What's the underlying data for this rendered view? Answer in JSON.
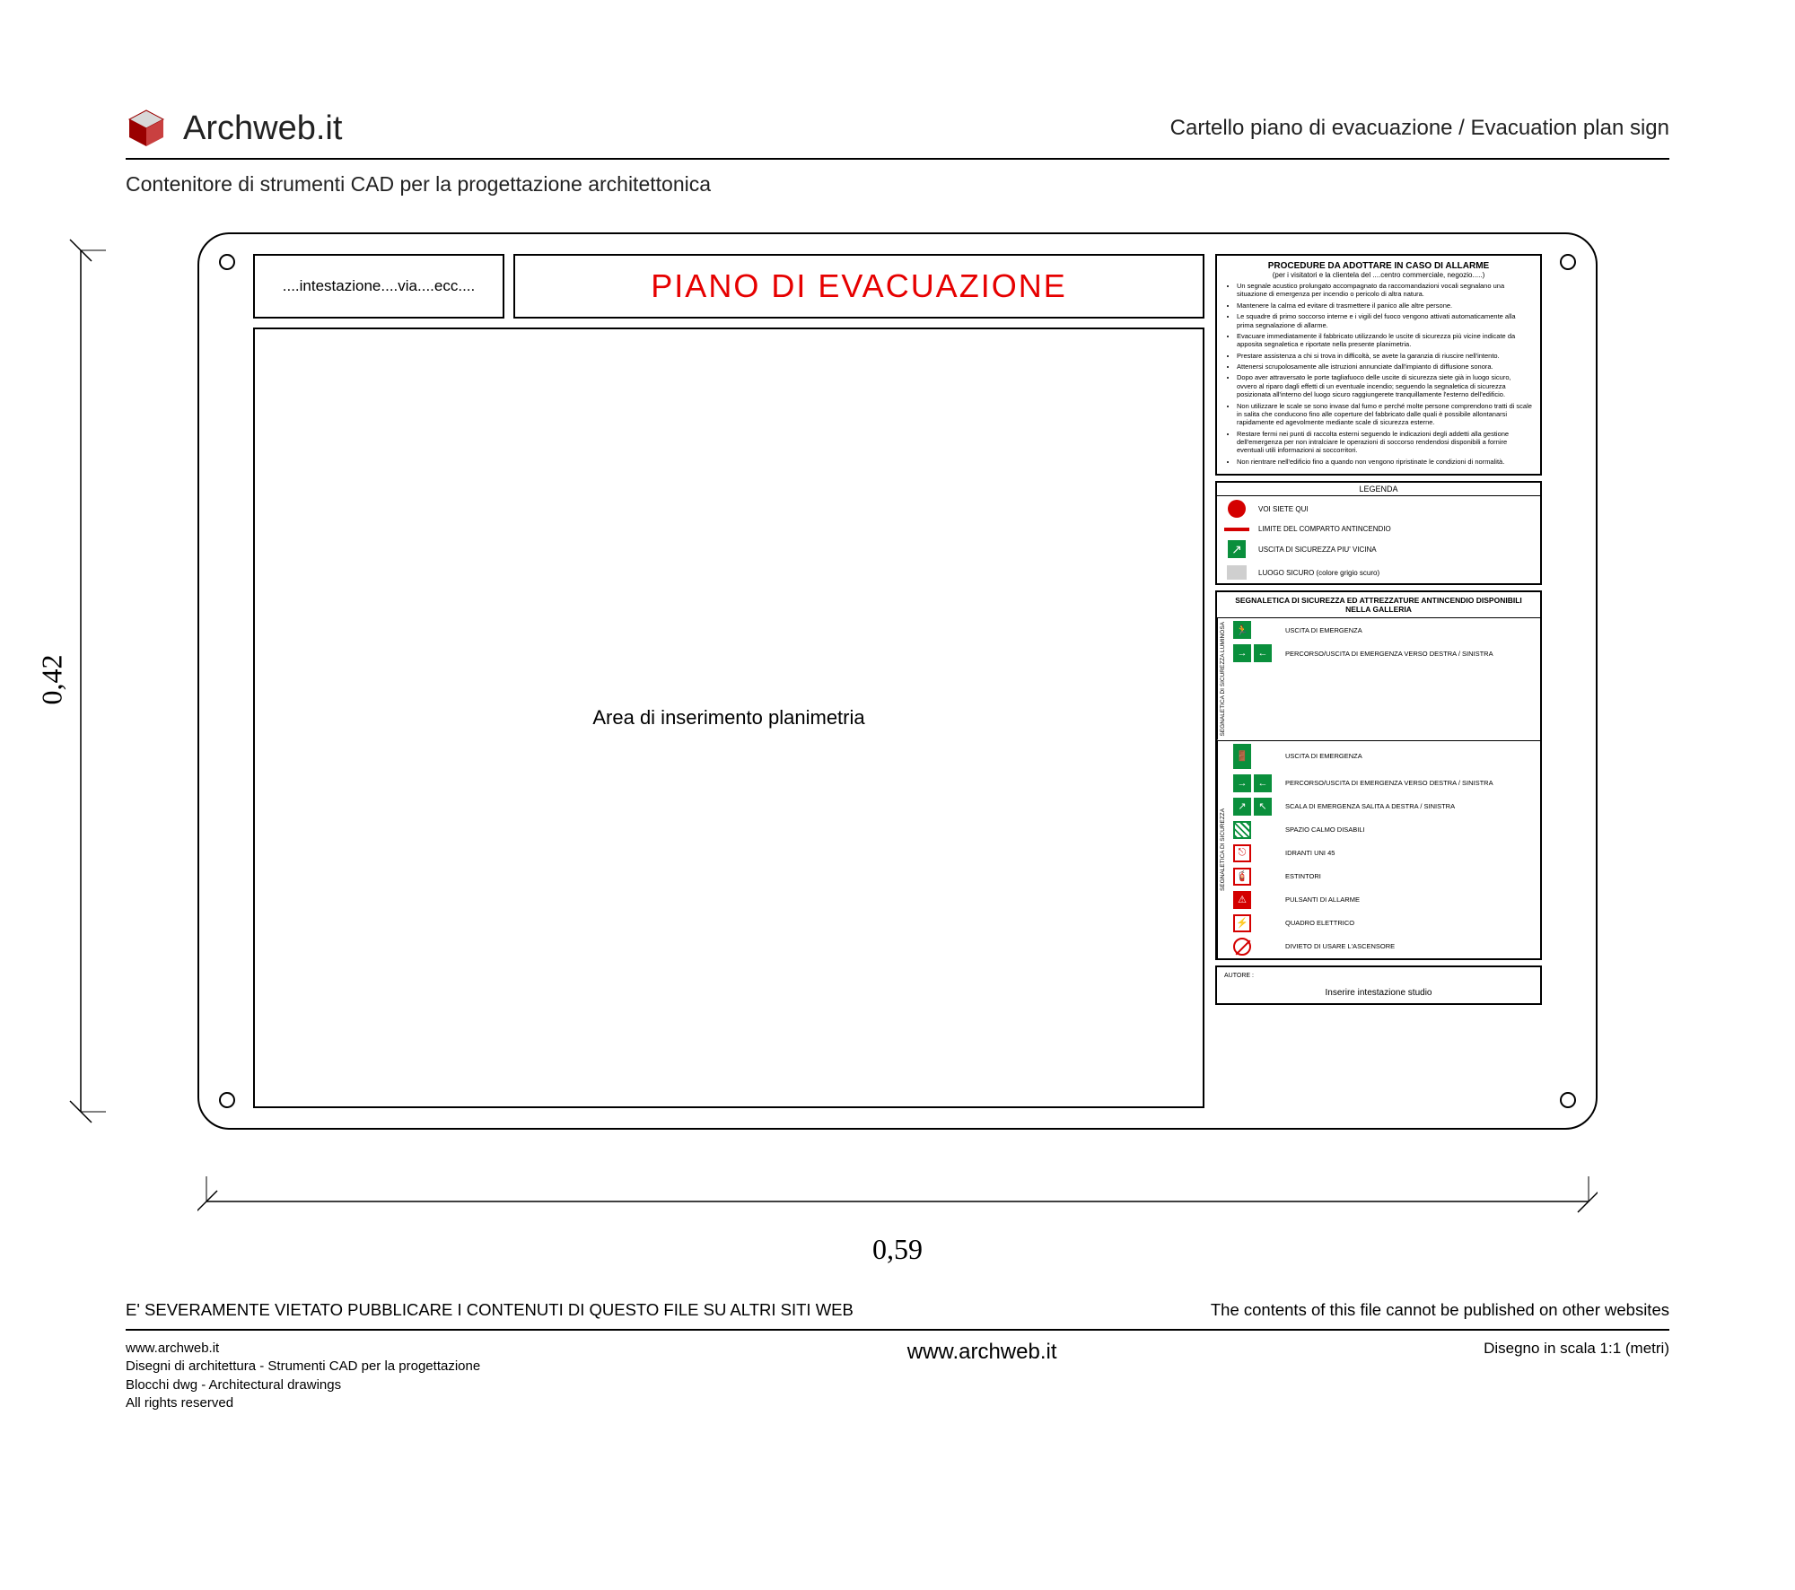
{
  "brand": "Archweb.it",
  "page_title": "Cartello piano di evacuazione  /  Evacuation plan sign",
  "subtitle": "Contenitore di strumenti CAD per la progettazione architettonica",
  "dimensions": {
    "h": "0,42",
    "w": "0,59"
  },
  "panel": {
    "intestazione": "....intestazione....via....ecc....",
    "main_title": "PIANO DI  EVACUAZIONE",
    "plan_area": "Area di inserimento planimetria"
  },
  "procedures": {
    "title": "PROCEDURE DA ADOTTARE IN CASO DI ALLARME",
    "subtitle": "(per i visitatori e la clientela del ....centro commerciale, negozio.....)",
    "items": [
      "Un segnale acustico prolungato accompagnato da raccomandazioni vocali segnalano una situazione di emergenza per incendio o pericolo di altra natura.",
      "Mantenere la calma ed evitare di trasmettere il panico alle altre persone.",
      "Le squadre di primo soccorso interne e i vigili del fuoco vengono attivati automaticamente alla prima segnalazione di allarme.",
      "Evacuare immediatamente il fabbricato utilizzando le uscite di sicurezza più vicine indicate da apposita segnaletica e riportate nella presente planimetria.",
      "Prestare assistenza a chi si trova in difficoltà, se avete la garanzia di riuscire nell'intento.",
      "Attenersi scrupolosamente alle istruzioni annunciate dall'impianto di diffusione sonora.",
      "Dopo aver attraversato le porte tagliafuoco delle uscite di sicurezza siete già in luogo sicuro, ovvero al riparo dagli effetti di un eventuale incendio; seguendo la segnaletica di sicurezza posizionata all'interno del luogo sicuro raggiungerete tranquillamente l'esterno dell'edificio.",
      "Non utilizzare le scale se sono invase dal fumo e perché molte persone comprendono tratti di scale in salita che conducono fino alle coperture del fabbricato dalle quali è possibile allontanarsi rapidamente ed agevolmente mediante scale di sicurezza esterne.",
      "Restare fermi nei punti di raccolta esterni seguendo le indicazioni degli addetti alla gestione dell'emergenza per non intralciare le operazioni di soccorso rendendosi disponibili a fornire eventuali utili informazioni ai soccorritori.",
      "Non rientrare nell'edificio fino a quando non vengono ripristinate le condizioni di normalità."
    ]
  },
  "legend": {
    "title": "LEGENDA",
    "rows": [
      {
        "sym": "dot",
        "label": "VOI SIETE QUI"
      },
      {
        "sym": "line",
        "label": "LIMITE DEL COMPARTO ANTINCENDIO"
      },
      {
        "sym": "exit",
        "label": "USCITA DI SICUREZZA PIU' VICINA"
      },
      {
        "sym": "grey",
        "label": "LUOGO SICURO (colore grigio scuro)"
      }
    ]
  },
  "signage": {
    "title": "SEGNALETICA DI SICUREZZA ED ATTREZZATURE ANTINCENDIO DISPONIBILI NELLA GALLERIA",
    "group1_label": "SEGNALETICA DI SICUREZZA LUMINOSA",
    "group1": [
      {
        "ico": "running",
        "label": "USCITA DI EMERGENZA"
      },
      {
        "ico": "arrows2",
        "label": "PERCORSO/USCITA DI EMERGENZA VERSO DESTRA / SINISTRA"
      }
    ],
    "group2_label": "SEGNALETICA DI SICUREZZA",
    "group2": [
      {
        "ico": "door",
        "label": "USCITA DI EMERGENZA"
      },
      {
        "ico": "arrows2",
        "label": "PERCORSO/USCITA DI EMERGENZA VERSO DESTRA / SINISTRA"
      },
      {
        "ico": "stairs2",
        "label": "SCALA DI EMERGENZA SALITA A DESTRA / SINISTRA"
      },
      {
        "ico": "hatch",
        "label": "SPAZIO CALMO DISABILI"
      },
      {
        "ico": "hydrant",
        "label": "IDRANTI UNI 45"
      },
      {
        "ico": "ext",
        "label": "ESTINTORI"
      },
      {
        "ico": "alarm",
        "label": "PULSANTI DI ALLARME"
      },
      {
        "ico": "elec",
        "label": "QUADRO ELETTRICO"
      },
      {
        "ico": "noelev",
        "label": "DIVIETO DI USARE L'ASCENSORE"
      }
    ]
  },
  "author": {
    "label": "AUTORE :",
    "text": "Inserire intestazione studio"
  },
  "footer": {
    "warn_it": "E' SEVERAMENTE VIETATO PUBBLICARE I CONTENUTI DI QUESTO FILE SU ALTRI SITI WEB",
    "warn_en": "The contents of this file cannot be published on other websites",
    "site": "www.archweb.it",
    "left_lines": [
      "www.archweb.it",
      "Disegni di architettura - Strumenti CAD  per la progettazione",
      "Blocchi dwg - Architectural drawings",
      "All rights reserved"
    ],
    "scale": "Disegno in scala 1:1 (metri)"
  },
  "colors": {
    "red": "#e60000",
    "green": "#0a8f3c",
    "darkred": "#d40000",
    "grey": "#cfcfcf"
  }
}
